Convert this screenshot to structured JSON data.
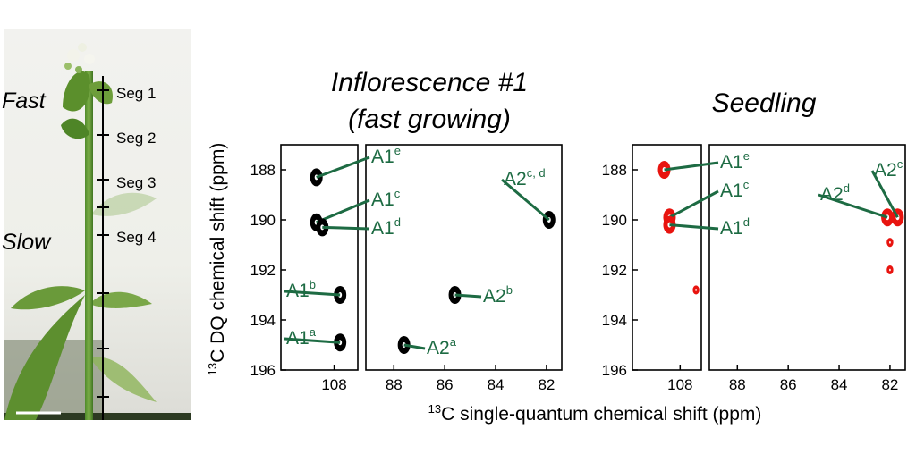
{
  "photo": {
    "phase_fast": "Fast",
    "phase_slow": "Slow",
    "segments": [
      "Seg 1",
      "Seg 2",
      "Seg 3",
      "Seg 4"
    ]
  },
  "colors": {
    "inflorescence": "#000000",
    "seedling": "#e8140f",
    "annotation": "#1d6b43"
  },
  "chart_data": [
    {
      "type": "scatter",
      "title_line1": "Inflorescence #1",
      "title_line2": "(fast growing)",
      "xlabel_prefix": "13",
      "xlabel": "C single-quantum chemical shift (ppm)",
      "ylabel_prefix": "13",
      "ylabel": "C DQ chemical shift (ppm)",
      "ylim": [
        196,
        187
      ],
      "yticks": [
        "188",
        "190",
        "192",
        "194",
        "196"
      ],
      "x_panels": [
        {
          "xlim": [
            108.9,
            107.6
          ],
          "ticks": [
            "108"
          ]
        },
        {
          "xlim": [
            89.1,
            81.4
          ],
          "ticks": [
            "88",
            "86",
            "84",
            "82"
          ]
        }
      ],
      "series": [
        {
          "values": [
            {
              "x": 108.3,
              "y": 188.3,
              "label": "A1",
              "sup": "e"
            },
            {
              "x": 108.3,
              "y": 190.1,
              "label": "A1",
              "sup": "c"
            },
            {
              "x": 108.2,
              "y": 190.3,
              "label": "A1",
              "sup": "d"
            },
            {
              "x": 107.9,
              "y": 193.0,
              "label": "A1",
              "sup": "b"
            },
            {
              "x": 107.9,
              "y": 194.9,
              "label": "A1",
              "sup": "a"
            },
            {
              "x": 87.6,
              "y": 195.0,
              "label": "A2",
              "sup": "a"
            },
            {
              "x": 85.6,
              "y": 193.0,
              "label": "A2",
              "sup": "b"
            },
            {
              "x": 81.9,
              "y": 190.0,
              "label": "A2",
              "sup": "c, d"
            }
          ]
        }
      ]
    },
    {
      "type": "scatter",
      "title_line1": "Seedling",
      "ylim": [
        196,
        187
      ],
      "yticks": [
        "188",
        "190",
        "192",
        "194",
        "196"
      ],
      "x_panels": [
        {
          "xlim": [
            108.9,
            107.6
          ],
          "ticks": [
            "108"
          ]
        },
        {
          "xlim": [
            89.1,
            81.4
          ],
          "ticks": [
            "88",
            "86",
            "84",
            "82"
          ]
        }
      ],
      "series": [
        {
          "values": [
            {
              "x": 108.3,
              "y": 188.0,
              "label": "A1",
              "sup": "e"
            },
            {
              "x": 108.2,
              "y": 189.9,
              "label": "A1",
              "sup": "c"
            },
            {
              "x": 108.2,
              "y": 190.2,
              "label": "A1",
              "sup": "d"
            },
            {
              "x": 107.7,
              "y": 192.8
            },
            {
              "x": 82.1,
              "y": 189.9,
              "label": "A2",
              "sup": "d"
            },
            {
              "x": 81.7,
              "y": 189.9,
              "label": "A2",
              "sup": "c"
            },
            {
              "x": 82.0,
              "y": 190.9
            },
            {
              "x": 82.0,
              "y": 192.0
            }
          ]
        }
      ]
    }
  ]
}
